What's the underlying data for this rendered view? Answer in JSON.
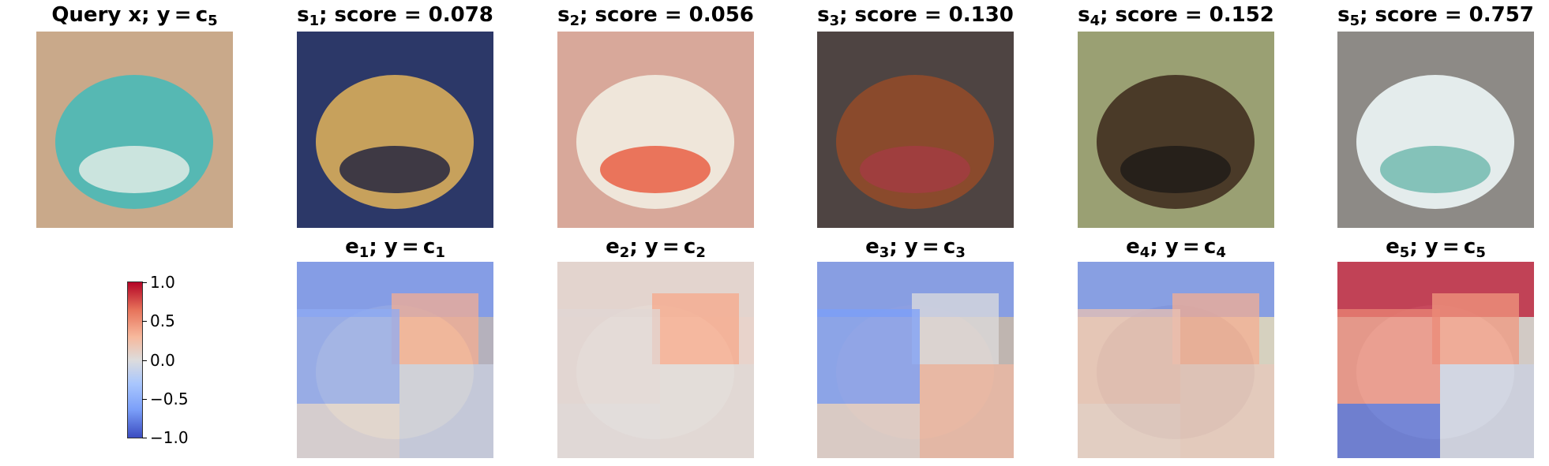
{
  "chart_data": {
    "type": "image-grid",
    "top_row": [
      {
        "id": "query",
        "prefix": "Query x; y = c",
        "sub": "5",
        "suffix": "",
        "colors": {
          "bg": "#c9a98a",
          "main": "#56b8b3",
          "accent": "#e8efe9"
        }
      },
      {
        "id": "s1",
        "prefix": "s",
        "sub": "1",
        "suffix": "; score = 0.078",
        "colors": {
          "bg": "#2c3868",
          "main": "#c7a15c",
          "accent": "#1b1f3f"
        }
      },
      {
        "id": "s2",
        "prefix": "s",
        "sub": "2",
        "suffix": "; score = 0.056",
        "colors": {
          "bg": "#d8a89a",
          "main": "#efe6da",
          "accent": "#e8573b"
        }
      },
      {
        "id": "s3",
        "prefix": "s",
        "sub": "3",
        "suffix": "; score = 0.130",
        "colors": {
          "bg": "#4e4442",
          "main": "#8a4a2c",
          "accent": "#a43b44"
        }
      },
      {
        "id": "s4",
        "prefix": "s",
        "sub": "4",
        "suffix": "; score = 0.152",
        "colors": {
          "bg": "#9aa073",
          "main": "#4a3a28",
          "accent": "#1d1a16"
        }
      },
      {
        "id": "s5",
        "prefix": "s",
        "sub": "5",
        "suffix": "; score = 0.757",
        "colors": {
          "bg": "#8d8a86",
          "main": "#e4ecec",
          "accent": "#6cb8ad"
        }
      }
    ],
    "bottom_row": [
      {
        "id": "e1",
        "prefix": "e",
        "sub": "1",
        "mid": "; y = c",
        "sub2": "1",
        "attr": [
          -0.55,
          0.45,
          -0.4,
          -0.1,
          0.05
        ]
      },
      {
        "id": "e2",
        "prefix": "e",
        "sub": "2",
        "mid": "; y = c",
        "sub2": "2",
        "attr": [
          0.08,
          0.5,
          0.05,
          0.03,
          0.02
        ]
      },
      {
        "id": "e3",
        "prefix": "e",
        "sub": "3",
        "mid": "; y = c",
        "sub2": "3",
        "attr": [
          -0.55,
          0.0,
          -0.5,
          0.35,
          0.1
        ]
      },
      {
        "id": "e4",
        "prefix": "e",
        "sub": "4",
        "mid": "; y = c",
        "sub2": "4",
        "attr": [
          -0.6,
          0.45,
          0.25,
          0.2,
          0.15
        ]
      },
      {
        "id": "e5",
        "prefix": "e",
        "sub": "5",
        "mid": "; y = c",
        "sub2": "5",
        "attr": [
          0.95,
          0.55,
          0.6,
          -0.1,
          -0.85
        ]
      }
    ],
    "colorbar": {
      "cmap": "coolwarm",
      "min": -1.0,
      "max": 1.0,
      "ticks": [
        {
          "value": 1.0,
          "label": "1.0"
        },
        {
          "value": 0.5,
          "label": "0.5"
        },
        {
          "value": 0.0,
          "label": "0.0"
        },
        {
          "value": -0.5,
          "label": "−0.5"
        },
        {
          "value": -1.0,
          "label": "−1.0"
        }
      ]
    }
  }
}
